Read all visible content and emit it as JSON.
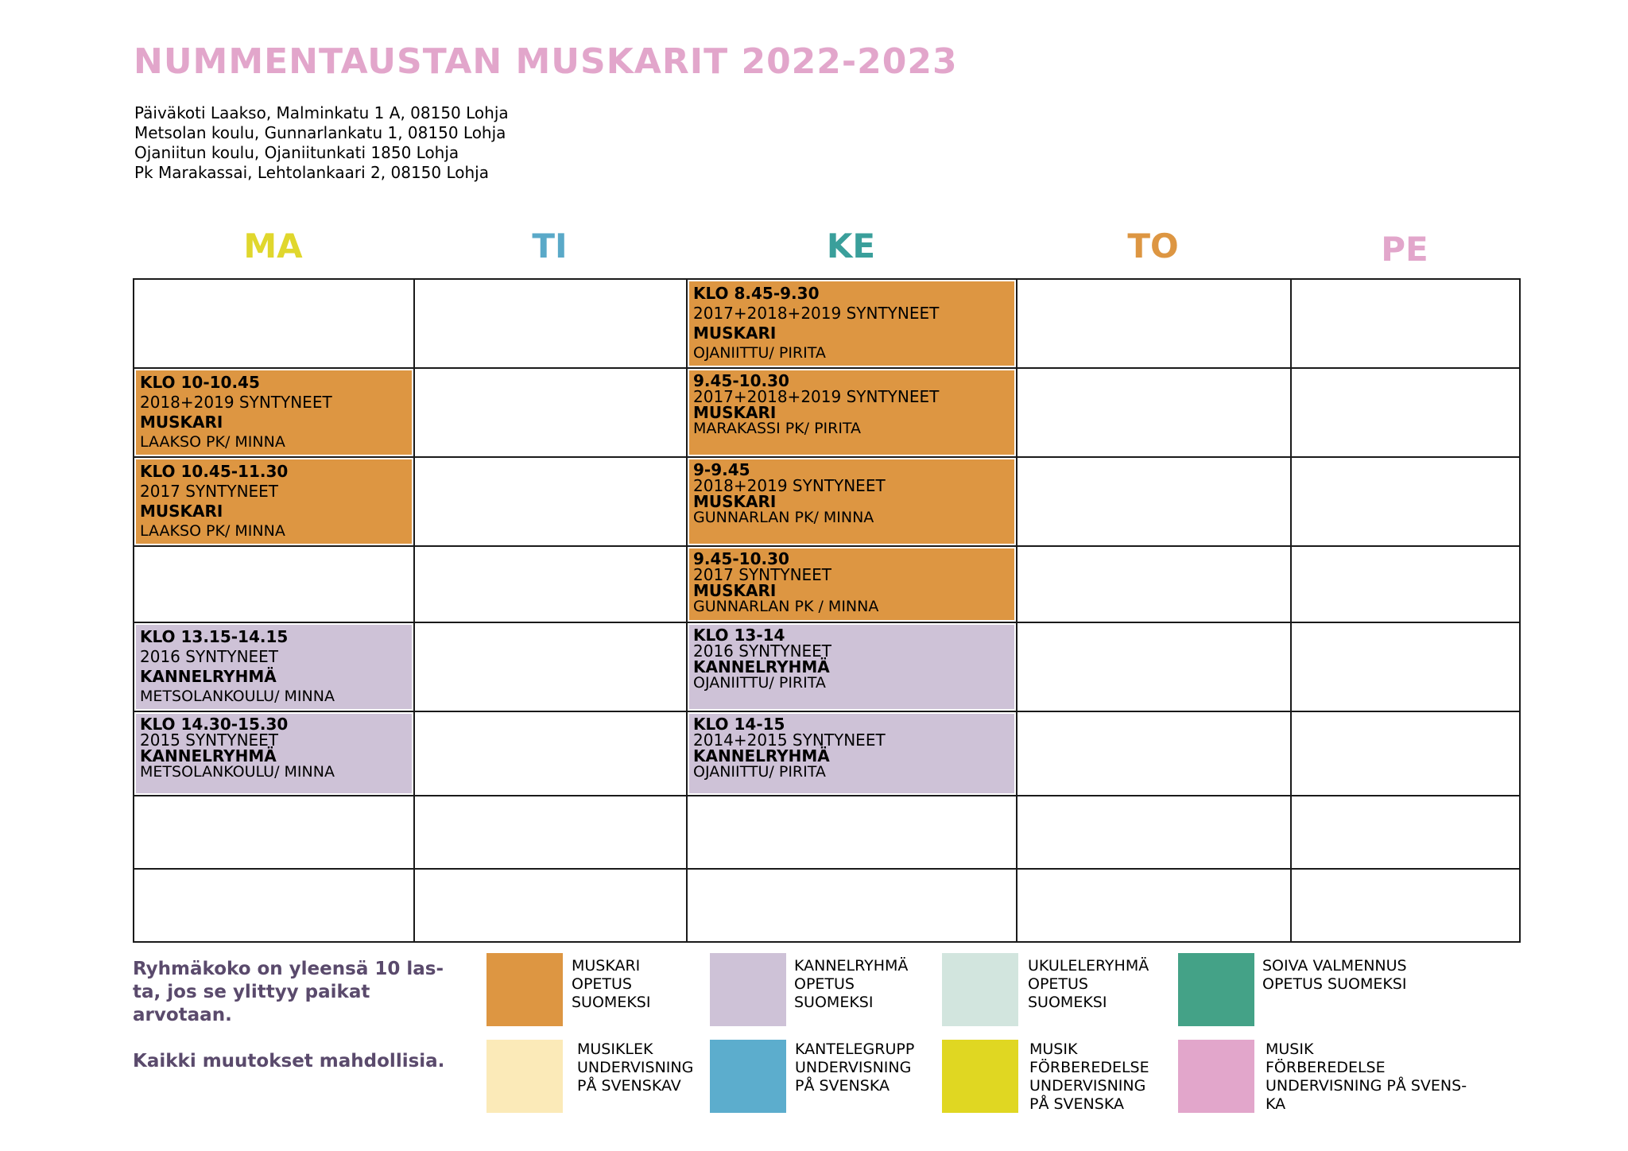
{
  "title": "NUMMENTAUSTAN MUSKARIT 2022-2023",
  "addresses": [
    "Päiväkoti Laakso, Malminkatu 1 A, 08150 Lohja",
    "Metsolan koulu, Gunnarlankatu 1, 08150 Lohja",
    "Ojaniitun koulu, Ojaniitunkati 1850 Lohja",
    "Pk Marakassai, Lehtolankaari 2, 08150 Lohja"
  ],
  "days": [
    {
      "label": "MA",
      "color": "#e0d72d"
    },
    {
      "label": "TI",
      "color": "#5aa9c8"
    },
    {
      "label": "KE",
      "color": "#3a9f9b"
    },
    {
      "label": "TO",
      "color": "#dd9642"
    },
    {
      "label": "PE",
      "color": "#e2a6cb"
    }
  ],
  "schedule": {
    "ma": [
      null,
      {
        "time": "KLO 10-10.45",
        "age": "2018+2019 SYNTYNEET",
        "group": "MUSKARI",
        "place": "LAAKSO PK/ MINNA",
        "color": "#dd9642"
      },
      {
        "time": "KLO 10.45-11.30",
        "age": "2017 SYNTYNEET",
        "group": "MUSKARI",
        "place": "LAAKSO PK/ MINNA",
        "color": "#dd9642"
      },
      null,
      {
        "time": "KLO 13.15-14.15",
        "age": "2016 SYNTYNEET",
        "group": "KANNELRYHMÄ",
        "place": "METSOLANKOULU/ MINNA",
        "color": "#cec2d7"
      },
      {
        "time": "KLO 14.30-15.30",
        "age": "2015 SYNTYNEET",
        "group": "KANNELRYHMÄ",
        "place": "METSOLANKOULU/ MINNA",
        "color": "#cec2d7"
      }
    ],
    "ke": [
      {
        "time": "KLO 8.45-9.30",
        "age": "2017+2018+2019 SYNTYNEET",
        "group": "MUSKARI",
        "place": "OJANIITTU/ PIRITA",
        "color": "#dd9642"
      },
      {
        "time": "9.45-10.30",
        "age": "2017+2018+2019 SYNTYNEET",
        "group": "MUSKARI",
        "place": "MARAKASSI PK/ PIRITA",
        "color": "#dd9642"
      },
      {
        "time": "9-9.45",
        "age": "2018+2019 SYNTYNEET",
        "group": "MUSKARI",
        "place": "GUNNARLAN PK/ MINNA",
        "color": "#dd9642"
      },
      {
        "time": "9.45-10.30",
        "age": "2017 SYNTYNEET",
        "group": "MUSKARI",
        "place": "GUNNARLAN PK / MINNA",
        "color": "#dd9642"
      },
      {
        "time": "KLO 13-14",
        "age": "2016 SYNTYNEET",
        "group": "KANNELRYHMÄ",
        "place": "OJANIITTU/ PIRITA",
        "color": "#cec2d7"
      },
      {
        "time": "KLO 14-15",
        "age": "2014+2015 SYNTYNEET",
        "group": "KANNELRYHMÄ",
        "place": "OJANIITTU/ PIRITA",
        "color": "#cec2d7"
      }
    ]
  },
  "note": {
    "size_text": "Ryhmäkoko on yleensä 10 las-\nta, jos se ylittyy paikat\narvotaan.",
    "changes_text": "Kaikki muutokset mahdollisia."
  },
  "legend": [
    {
      "color": "#dd9642",
      "label": "MUSKARI\nOPETUS\nSUOMEKSI"
    },
    {
      "color": "#cec2d7",
      "label": "KANNELRYHMÄ\nOPETUS\nSUOMEKSI"
    },
    {
      "color": "#d2e5de",
      "label": "UKULELERYHMÄ\nOPETUS\nSUOMEKSI"
    },
    {
      "color": "#44a287",
      "label": "SOIVA VALMENNUS\nOPETUS SUOMEKSI"
    },
    {
      "color": "#fbeab8",
      "label": "MUSIKLEK\nUNDERVISNING\nPÅ SVENSKAV"
    },
    {
      "color": "#5cadcd",
      "label": "KANTELEGRUPP\nUNDERVISNING\nPÅ SVENSKA"
    },
    {
      "color": "#e0d722",
      "label": "MUSIK\nFÖRBEREDELSE\nUNDERVISNING\nPÅ SVENSKA"
    },
    {
      "color": "#e2a6cb",
      "label": "MUSIK\nFÖRBEREDELSE\nUNDERVISNING PÅ SVENS-\nKA"
    }
  ]
}
